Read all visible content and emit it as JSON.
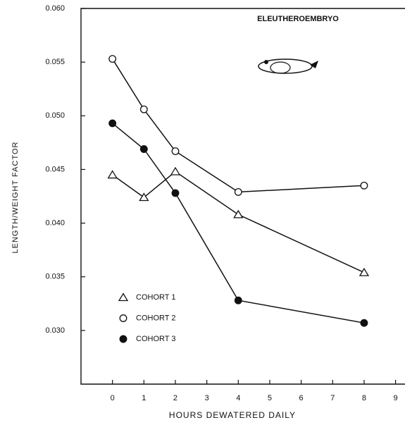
{
  "chart_data": {
    "type": "line",
    "annotation": "ELEUTHEROEMBRYO",
    "x_label": "HOURS DEWATERED DAILY",
    "y_label": "LENGTH/WEIGHT FACTOR",
    "x": [
      0,
      1,
      2,
      4,
      8
    ],
    "series": [
      {
        "name": "COHORT 1",
        "color": "#111111",
        "marker": "triangle",
        "filled": false,
        "values": [
          0.0445,
          0.0424,
          0.0448,
          0.0408,
          0.0354
        ]
      },
      {
        "name": "COHORT 2",
        "color": "#111111",
        "marker": "circle",
        "filled": false,
        "values": [
          0.0553,
          0.0506,
          0.0467,
          0.0429,
          0.0435
        ]
      },
      {
        "name": "COHORT 3",
        "color": "#111111",
        "marker": "circle",
        "filled": true,
        "values": [
          0.0493,
          0.0469,
          0.0428,
          0.0328,
          0.0307
        ]
      }
    ],
    "xlim": [
      -1,
      9.3
    ],
    "xticks": [
      0,
      1,
      2,
      3,
      4,
      5,
      6,
      7,
      8,
      9
    ],
    "ylim": [
      0.025,
      0.06
    ],
    "yticks": [
      {
        "value": 0.03,
        "label": "0.030"
      },
      0.035,
      {
        "value": 0.04,
        "label": "0.040"
      },
      0.045,
      {
        "value": 0.05,
        "label": "0.050"
      },
      0.055,
      {
        "value": 0.06,
        "label": "0.060"
      }
    ],
    "grid": false,
    "legend": "lower left"
  }
}
